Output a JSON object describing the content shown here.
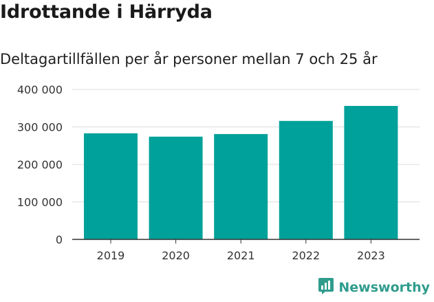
{
  "chart_data": {
    "type": "bar",
    "title": "Idrottande i Härryda",
    "subtitle": "Deltagartillfällen per år personer mellan 7 och 25 år",
    "categories": [
      "2019",
      "2020",
      "2021",
      "2022",
      "2023"
    ],
    "values": [
      283000,
      274000,
      281000,
      316000,
      356000
    ],
    "y_ticks": [
      0,
      100000,
      200000,
      300000,
      400000
    ],
    "y_tick_labels": [
      "0",
      "100 000",
      "200 000",
      "300 000",
      "400 000"
    ],
    "ylim": [
      0,
      400000
    ],
    "xlabel": "",
    "ylabel": "",
    "grid": true,
    "bar_color": "#00a19a"
  },
  "brand": {
    "name": "Newsworthy",
    "icon": "newsworthy-logo-icon",
    "color": "#2f9c8d"
  }
}
